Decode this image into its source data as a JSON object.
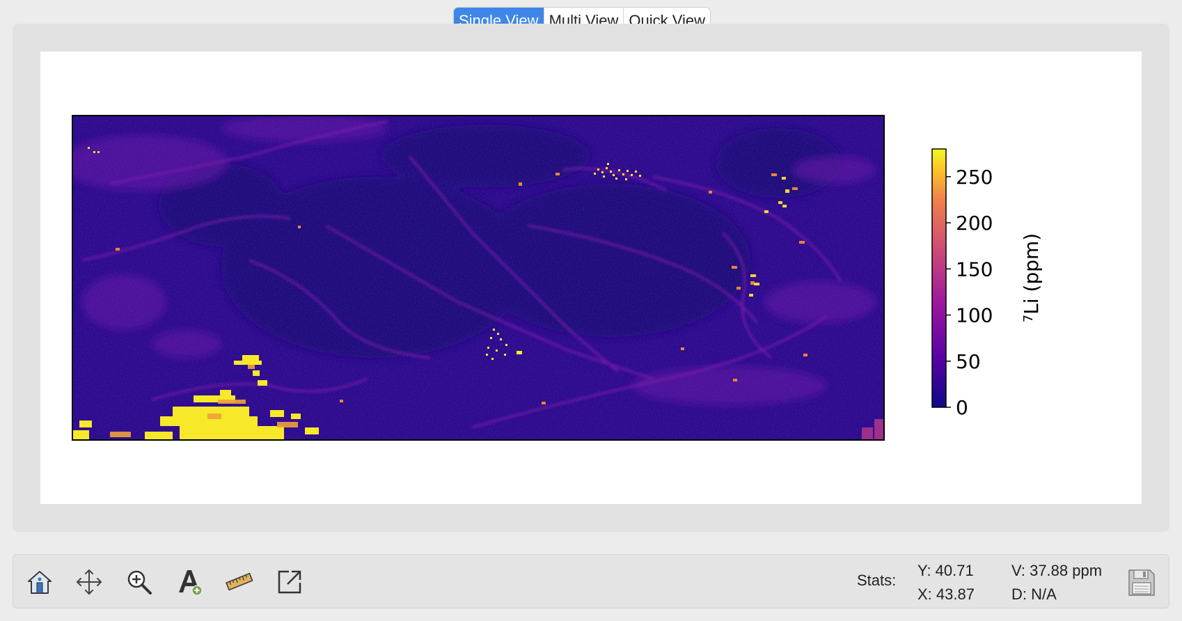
{
  "view_tabs": [
    {
      "label": "Single View",
      "active": true
    },
    {
      "label": "Multi View",
      "active": false
    },
    {
      "label": "Quick View",
      "active": false
    }
  ],
  "plot": {
    "image_content": "elemental concentration map (plasma colormap)",
    "colorbar": {
      "label_superscript": "7",
      "label_main": "Li (ppm)",
      "ticks": [
        "0",
        "50",
        "100",
        "150",
        "200",
        "250"
      ],
      "tick_values": [
        0,
        50,
        100,
        150,
        200,
        250
      ],
      "vmin": 0,
      "vmax": 280,
      "colormap": "plasma"
    }
  },
  "toolbar": {
    "tools": [
      {
        "name": "home-icon",
        "title": "Home"
      },
      {
        "name": "pan-icon",
        "title": "Pan"
      },
      {
        "name": "zoom-icon",
        "title": "Zoom"
      },
      {
        "name": "annotate-icon",
        "title": "Annotate"
      },
      {
        "name": "ruler-icon",
        "title": "Measure"
      },
      {
        "name": "export-icon",
        "title": "Export"
      }
    ],
    "stats_label": "Stats:",
    "y": "Y: 40.71",
    "x": "X: 43.87",
    "v": "V: 37.88 ppm",
    "d": "D: N/A"
  },
  "colors": {
    "accent": "#3f86e8",
    "panel": "#e2e2e2",
    "plasma_low": "#0d0887",
    "plasma_high": "#f0f921"
  }
}
